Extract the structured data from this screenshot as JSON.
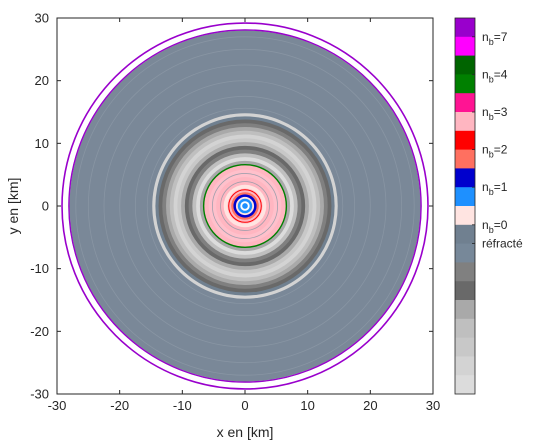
{
  "chart_data": {
    "type": "heatmap",
    "title": "",
    "xlabel": "x en [km]",
    "ylabel": "y en [km]",
    "xlim": [
      -30,
      30
    ],
    "ylim": [
      -30,
      30
    ],
    "xticks": [
      "-30",
      "-20",
      "-10",
      "0",
      "10",
      "20",
      "30"
    ],
    "yticks": [
      "30",
      "20",
      "10",
      "0",
      "-10",
      "-20",
      "-30"
    ],
    "grid": false,
    "colorbar": {
      "position": "right",
      "segments": [
        {
          "color": "#9900cc",
          "label": "n_b=7"
        },
        {
          "color": "#ff00ff",
          "label": ""
        },
        {
          "color": "#006400",
          "label": "n_b=4"
        },
        {
          "color": "#008000",
          "label": ""
        },
        {
          "color": "#ff1493",
          "label": "n_b=3"
        },
        {
          "color": "#ffb6c1",
          "label": ""
        },
        {
          "color": "#ff0000",
          "label": "n_b=2"
        },
        {
          "color": "#ff7060",
          "label": ""
        },
        {
          "color": "#0000cd",
          "label": "n_b=1"
        },
        {
          "color": "#1e90ff",
          "label": ""
        },
        {
          "color": "#ffe4e1",
          "label": "n_b=0"
        },
        {
          "color": "#708090",
          "label": "réfracté"
        },
        {
          "color": "#778899",
          "label": ""
        },
        {
          "color": "#808080",
          "label": ""
        },
        {
          "color": "#696969",
          "label": ""
        },
        {
          "color": "#a9a9a9",
          "label": ""
        },
        {
          "color": "#bfbfbf",
          "label": ""
        },
        {
          "color": "#c8c8c8",
          "label": ""
        },
        {
          "color": "#d3d3d3",
          "label": ""
        },
        {
          "color": "#dcdcdc",
          "label": ""
        }
      ]
    },
    "rings": [
      {
        "r": 28.2,
        "color": "#dcdcdc"
      },
      {
        "r": 28.0,
        "color": "#7a8898"
      },
      {
        "r": 14.8,
        "color": "#d3d3d3"
      },
      {
        "r": 14.3,
        "color": "#708090"
      },
      {
        "r": 13.8,
        "color": "#696969"
      },
      {
        "r": 13.2,
        "color": "#808080"
      },
      {
        "r": 12.6,
        "color": "#a9a9a9"
      },
      {
        "r": 12.0,
        "color": "#bfbfbf"
      },
      {
        "r": 11.4,
        "color": "#d3d3d3"
      },
      {
        "r": 10.8,
        "color": "#c8c8c8"
      },
      {
        "r": 10.2,
        "color": "#a9a9a9"
      },
      {
        "r": 9.6,
        "color": "#696969"
      },
      {
        "r": 9.0,
        "color": "#808080"
      },
      {
        "r": 8.4,
        "color": "#bfbfbf"
      },
      {
        "r": 7.8,
        "color": "#dcdcdc"
      },
      {
        "r": 7.2,
        "color": "#a9a9a9"
      },
      {
        "r": 6.6,
        "color": "#ffb6c1"
      },
      {
        "r": 5.8,
        "color": "#ffc0cb"
      },
      {
        "r": 4.6,
        "color": "#ffb6c1"
      },
      {
        "r": 3.4,
        "color": "#ffe4e1"
      },
      {
        "r": 2.8,
        "color": "#ffb6c1"
      },
      {
        "r": 2.2,
        "color": "#ff7060"
      },
      {
        "r": 1.85,
        "color": "#0000cd"
      },
      {
        "r": 1.45,
        "color": "#ffe4e1"
      },
      {
        "r": 1.15,
        "color": "#1e90ff"
      },
      {
        "r": 0.75,
        "color": "#ffffff"
      },
      {
        "r": 0.45,
        "color": "#1e90ff"
      }
    ],
    "circles": [
      {
        "r": 29.2,
        "color": "#9900cc",
        "width": 1.6
      },
      {
        "r": 28.1,
        "color": "#9900cc",
        "width": 1.4
      },
      {
        "r": 6.6,
        "color": "#008000",
        "width": 1.4
      },
      {
        "r": 2.6,
        "color": "#ff0000",
        "width": 1.0
      }
    ],
    "faint_rings": [
      27.0,
      25.0,
      22.5,
      20.0,
      17.5,
      15.6,
      3.9,
      5.2
    ]
  }
}
